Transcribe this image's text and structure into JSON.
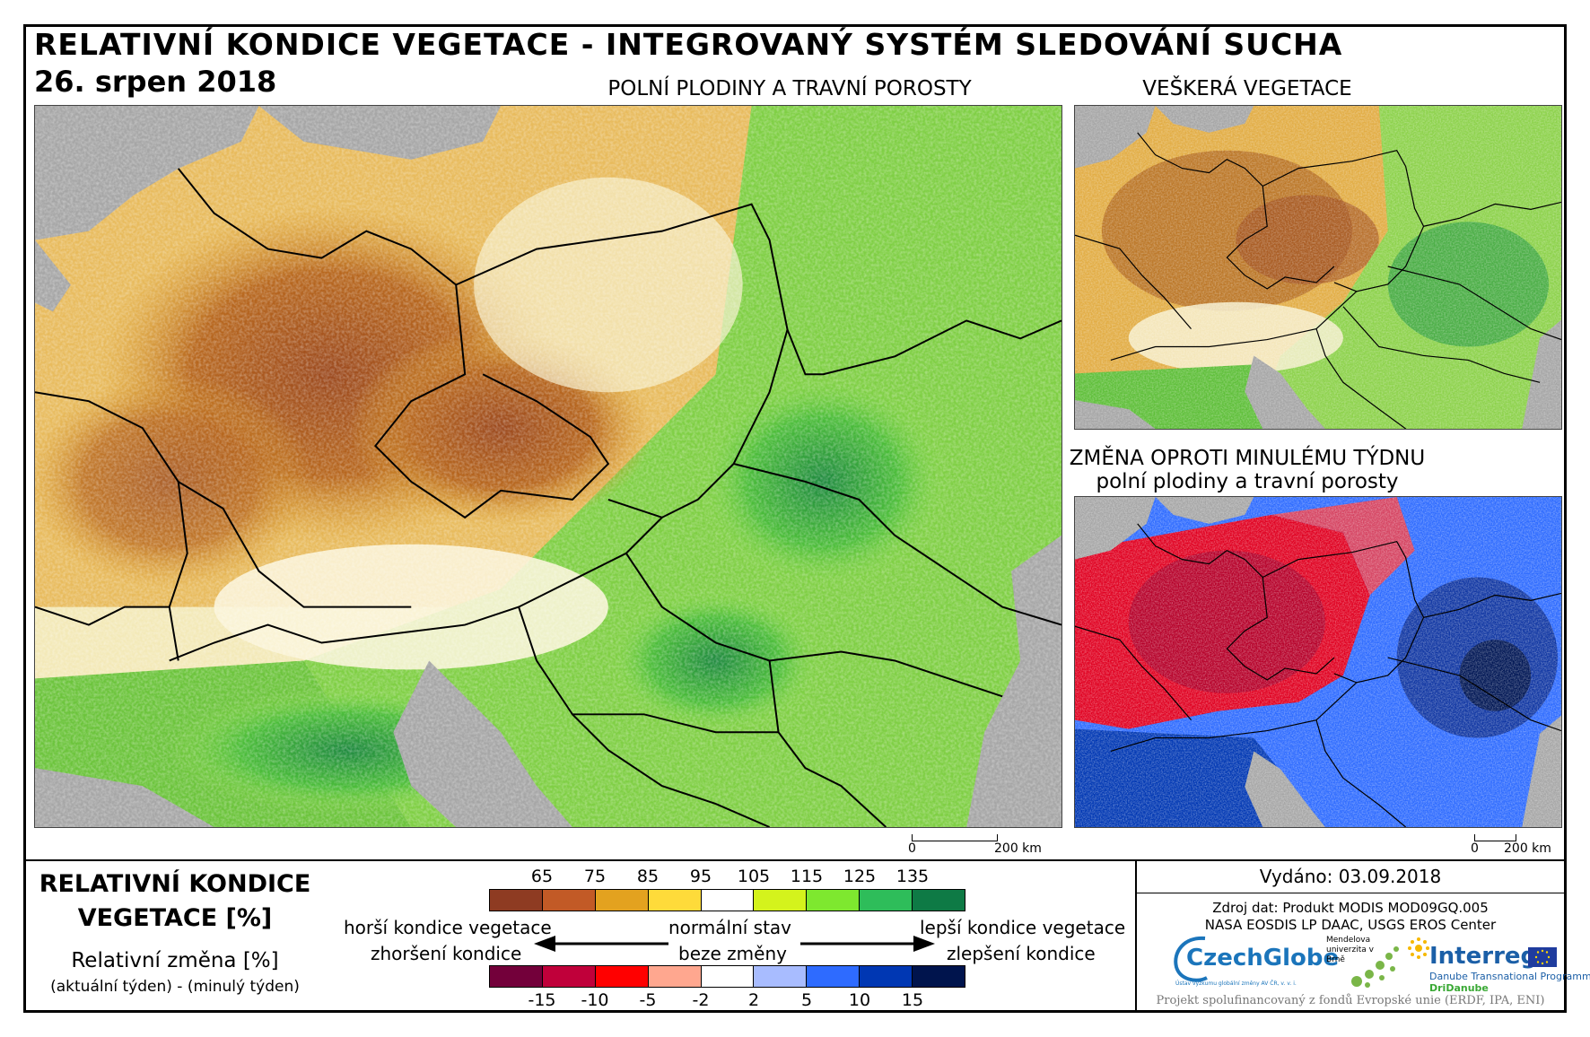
{
  "header": {
    "title": "RELATIVNÍ KONDICE VEGETACE - INTEGROVANÝ SYSTÉM SLEDOVÁNÍ SUCHA",
    "date": "26. srpen 2018"
  },
  "panels": {
    "main_label": "POLNÍ PLODINY A TRAVNÍ POROSTY",
    "top_right_label": "VEŠKERÁ VEGETACE",
    "bottom_right_label_1": "ZMĚNA OPROTI MINULÉMU TÝDNU",
    "bottom_right_label_2": "polní plodiny a travní porosty"
  },
  "scalebars": {
    "main": {
      "zero": "0",
      "end": "200 km"
    },
    "change": {
      "zero": "0",
      "end": "200 km"
    }
  },
  "legend": {
    "title_line1": "RELATIVNÍ KONDICE",
    "title_line2": "VEGETACE [%]",
    "subtitle": "Relativní změna [%]",
    "subtitle_note": "(aktuální týden) - (minulý týden)",
    "condition_colors": [
      "#8e3b22",
      "#c25a26",
      "#e3a21f",
      "#fedb3a",
      "#ffffff",
      "#d4f31c",
      "#7ee82f",
      "#2ebd5a",
      "#0e7a45"
    ],
    "condition_ticks": [
      "65",
      "75",
      "85",
      "95",
      "105",
      "115",
      "125",
      "135"
    ],
    "change_colors": [
      "#73003a",
      "#c0003a",
      "#ff0000",
      "#ffa78f",
      "#ffffff",
      "#a8bcff",
      "#2e6bff",
      "#0037b3",
      "#00144d"
    ],
    "change_ticks": [
      "-15",
      "-10",
      "-5",
      "-2",
      "2",
      "5",
      "10",
      "15"
    ],
    "worse_condition": "horší kondice vegetace",
    "normal_state": "normální stav",
    "better_condition": "lepší kondice vegetace",
    "deterioration": "zhoršení kondice",
    "no_change": "beze změny",
    "improvement": "zlepšení kondice"
  },
  "info": {
    "issued": "Vydáno: 03.09.2018",
    "source_line1": "Zdroj dat: Produkt MODIS MOD09GQ.005",
    "source_line2": "NASA EOSDIS LP DAAC, USGS EROS Center",
    "logo_czechglobe": "CzechGlobe",
    "logo_czechglobe_sub": "Ústav výzkumu globální změny AV ČR, v. v. i.",
    "logo_mendelu": "Mendelova univerzita v Brně",
    "logo_interreg": "Interreg",
    "logo_interreg_sub1": "Danube Transnational Programme",
    "logo_interreg_sub2": "DriDanube",
    "funding": "Projekt spolufinancovaný z fondů Evropské unie (ERDF, IPA, ENI)"
  }
}
